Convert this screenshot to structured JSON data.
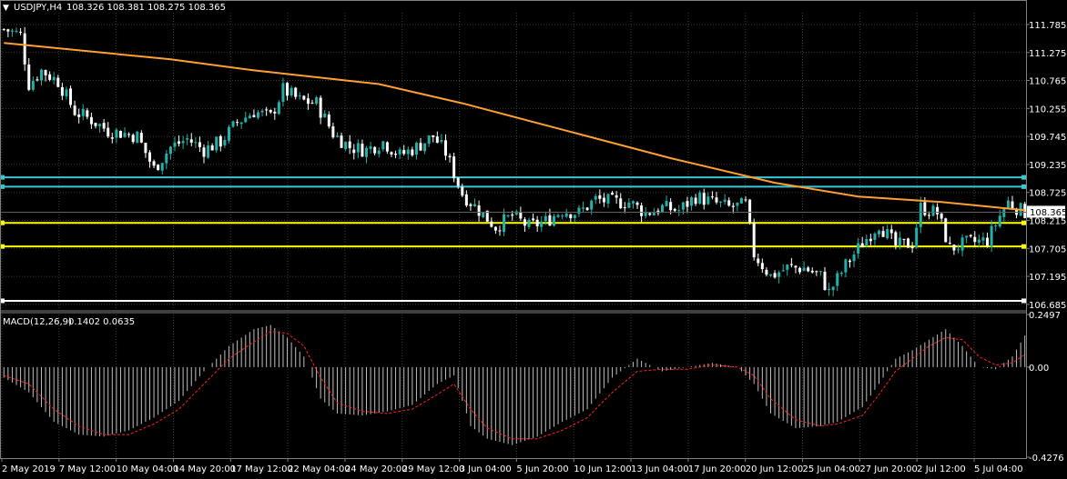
{
  "header": {
    "symbol": "USDJPY,H4",
    "ohlc": "108.326 108.381 108.275 108.365"
  },
  "macd_header": {
    "label": "MACD(12,26,9)",
    "values": "0.1402 0.0635"
  },
  "colors": {
    "background": "#000000",
    "grid": "#3d3d3d",
    "bull_candle": "#20b2aa",
    "bear_candle": "#ffffff",
    "moving_average": "#ffa033",
    "support_line": "#ffff00",
    "resistance_line": "#3ac6d6",
    "macd_signal": "#ff2020",
    "macd_hist": "#c0c0c0"
  },
  "chart_data": [
    {
      "type": "candlestick",
      "symbol": "USDJPY",
      "timeframe": "H4",
      "ylim": [
        106.6,
        112.0
      ],
      "y_ticks": [
        "111.785",
        "111.275",
        "110.765",
        "110.255",
        "109.745",
        "109.235",
        "108.725",
        "108.215",
        "107.705",
        "107.195",
        "106.685"
      ],
      "x_labels": [
        "2 May 2019",
        "7 May 12:00",
        "10 May 04:00",
        "14 May 20:00",
        "17 May 12:00",
        "22 May 04:00",
        "24 May 20:00",
        "29 May 12:00",
        "3 Jun 04:00",
        "5 Jun 20:00",
        "10 Jun 12:00",
        "13 Jun 04:00",
        "17 Jun 20:00",
        "20 Jun 12:00",
        "25 Jun 04:00",
        "27 Jun 20:00",
        "2 Jul 12:00",
        "5 Jul 04:00"
      ],
      "current_price": "108.365",
      "close_path": [
        [
          0,
          111.7
        ],
        [
          4,
          111.6
        ],
        [
          6,
          110.7
        ],
        [
          9,
          110.95
        ],
        [
          13,
          110.75
        ],
        [
          17,
          110.2
        ],
        [
          21,
          110.05
        ],
        [
          25,
          109.85
        ],
        [
          29,
          109.8
        ],
        [
          32,
          109.75
        ],
        [
          36,
          109.15
        ],
        [
          40,
          109.55
        ],
        [
          44,
          109.7
        ],
        [
          48,
          109.5
        ],
        [
          52,
          109.65
        ],
        [
          56,
          110.0
        ],
        [
          60,
          110.2
        ],
        [
          64,
          110.1
        ],
        [
          67,
          110.6
        ],
        [
          71,
          110.4
        ],
        [
          75,
          110.35
        ],
        [
          79,
          109.8
        ],
        [
          83,
          109.55
        ],
        [
          87,
          109.5
        ],
        [
          91,
          109.65
        ],
        [
          95,
          109.4
        ],
        [
          99,
          109.55
        ],
        [
          103,
          109.75
        ],
        [
          106,
          109.45
        ],
        [
          110,
          108.7
        ],
        [
          114,
          108.4
        ],
        [
          118,
          108.1
        ],
        [
          122,
          108.3
        ],
        [
          126,
          108.1
        ],
        [
          130,
          108.2
        ],
        [
          134,
          108.4
        ],
        [
          138,
          108.35
        ],
        [
          142,
          108.6
        ],
        [
          146,
          108.55
        ],
        [
          150,
          108.55
        ],
        [
          154,
          108.35
        ],
        [
          158,
          108.45
        ],
        [
          162,
          108.4
        ],
        [
          166,
          108.65
        ],
        [
          170,
          108.55
        ],
        [
          174,
          108.45
        ],
        [
          178,
          108.5
        ],
        [
          180,
          107.6
        ],
        [
          184,
          107.2
        ],
        [
          188,
          107.35
        ],
        [
          192,
          107.35
        ],
        [
          196,
          107.2
        ],
        [
          198,
          106.9
        ],
        [
          202,
          107.4
        ],
        [
          206,
          107.8
        ],
        [
          210,
          108.15
        ],
        [
          214,
          107.75
        ],
        [
          218,
          107.8
        ],
        [
          220,
          108.45
        ],
        [
          224,
          108.35
        ],
        [
          227,
          107.7
        ],
        [
          231,
          107.8
        ],
        [
          236,
          107.85
        ],
        [
          239,
          108.3
        ],
        [
          241,
          108.55
        ],
        [
          244,
          108.4
        ],
        [
          245,
          108.365
        ]
      ],
      "moving_average": [
        [
          0,
          111.45
        ],
        [
          40,
          111.15
        ],
        [
          60,
          110.95
        ],
        [
          90,
          110.7
        ],
        [
          110,
          110.35
        ],
        [
          135,
          109.85
        ],
        [
          160,
          109.35
        ],
        [
          185,
          108.9
        ],
        [
          205,
          108.65
        ],
        [
          225,
          108.55
        ],
        [
          245,
          108.4
        ]
      ],
      "horizontal_lines": [
        {
          "price": 109.0,
          "color": "#3ac6d6"
        },
        {
          "price": 108.83,
          "color": "#3ac6d6"
        },
        {
          "price": 108.17,
          "color": "#ffff00"
        },
        {
          "price": 107.74,
          "color": "#ffff00"
        },
        {
          "price": 106.75,
          "color": "#ffffff"
        }
      ]
    },
    {
      "type": "bar",
      "name": "MACD(12,26,9)",
      "ylim": [
        -0.4276,
        0.2497
      ],
      "y_ticks": [
        "0.2497",
        "0.00",
        "-0.4276"
      ],
      "histogram": [
        [
          0,
          -0.05
        ],
        [
          6,
          -0.12
        ],
        [
          12,
          -0.26
        ],
        [
          18,
          -0.32
        ],
        [
          24,
          -0.33
        ],
        [
          30,
          -0.3
        ],
        [
          36,
          -0.24
        ],
        [
          42,
          -0.16
        ],
        [
          48,
          -0.02
        ],
        [
          54,
          0.1
        ],
        [
          60,
          0.18
        ],
        [
          64,
          0.2
        ],
        [
          68,
          0.14
        ],
        [
          72,
          0.05
        ],
        [
          76,
          -0.15
        ],
        [
          80,
          -0.22
        ],
        [
          86,
          -0.23
        ],
        [
          92,
          -0.21
        ],
        [
          98,
          -0.18
        ],
        [
          104,
          -0.08
        ],
        [
          108,
          -0.04
        ],
        [
          112,
          -0.28
        ],
        [
          116,
          -0.34
        ],
        [
          122,
          -0.37
        ],
        [
          128,
          -0.33
        ],
        [
          134,
          -0.26
        ],
        [
          140,
          -0.2
        ],
        [
          146,
          -0.05
        ],
        [
          152,
          0.04
        ],
        [
          158,
          -0.02
        ],
        [
          164,
          0.0
        ],
        [
          170,
          0.02
        ],
        [
          176,
          0.0
        ],
        [
          180,
          -0.08
        ],
        [
          184,
          -0.22
        ],
        [
          190,
          -0.29
        ],
        [
          196,
          -0.28
        ],
        [
          200,
          -0.26
        ],
        [
          206,
          -0.19
        ],
        [
          210,
          -0.08
        ],
        [
          214,
          0.04
        ],
        [
          218,
          0.08
        ],
        [
          222,
          0.13
        ],
        [
          226,
          0.18
        ],
        [
          230,
          0.1
        ],
        [
          234,
          0.0
        ],
        [
          238,
          -0.01
        ],
        [
          242,
          0.05
        ],
        [
          245,
          0.15
        ]
      ],
      "signal": [
        [
          0,
          -0.04
        ],
        [
          6,
          -0.08
        ],
        [
          12,
          -0.2
        ],
        [
          18,
          -0.28
        ],
        [
          24,
          -0.32
        ],
        [
          30,
          -0.32
        ],
        [
          36,
          -0.27
        ],
        [
          42,
          -0.2
        ],
        [
          48,
          -0.08
        ],
        [
          54,
          0.04
        ],
        [
          60,
          0.12
        ],
        [
          64,
          0.17
        ],
        [
          68,
          0.16
        ],
        [
          72,
          0.1
        ],
        [
          76,
          -0.05
        ],
        [
          80,
          -0.17
        ],
        [
          86,
          -0.21
        ],
        [
          92,
          -0.22
        ],
        [
          98,
          -0.2
        ],
        [
          104,
          -0.13
        ],
        [
          108,
          -0.08
        ],
        [
          112,
          -0.2
        ],
        [
          116,
          -0.29
        ],
        [
          122,
          -0.34
        ],
        [
          128,
          -0.34
        ],
        [
          134,
          -0.3
        ],
        [
          140,
          -0.24
        ],
        [
          146,
          -0.12
        ],
        [
          152,
          -0.02
        ],
        [
          158,
          -0.01
        ],
        [
          164,
          -0.01
        ],
        [
          170,
          0.01
        ],
        [
          176,
          0.0
        ],
        [
          180,
          -0.04
        ],
        [
          184,
          -0.15
        ],
        [
          190,
          -0.25
        ],
        [
          196,
          -0.28
        ],
        [
          200,
          -0.27
        ],
        [
          206,
          -0.23
        ],
        [
          210,
          -0.13
        ],
        [
          214,
          -0.02
        ],
        [
          218,
          0.04
        ],
        [
          222,
          0.1
        ],
        [
          226,
          0.14
        ],
        [
          230,
          0.13
        ],
        [
          234,
          0.05
        ],
        [
          238,
          0.01
        ],
        [
          242,
          0.02
        ],
        [
          245,
          0.06
        ]
      ]
    }
  ]
}
